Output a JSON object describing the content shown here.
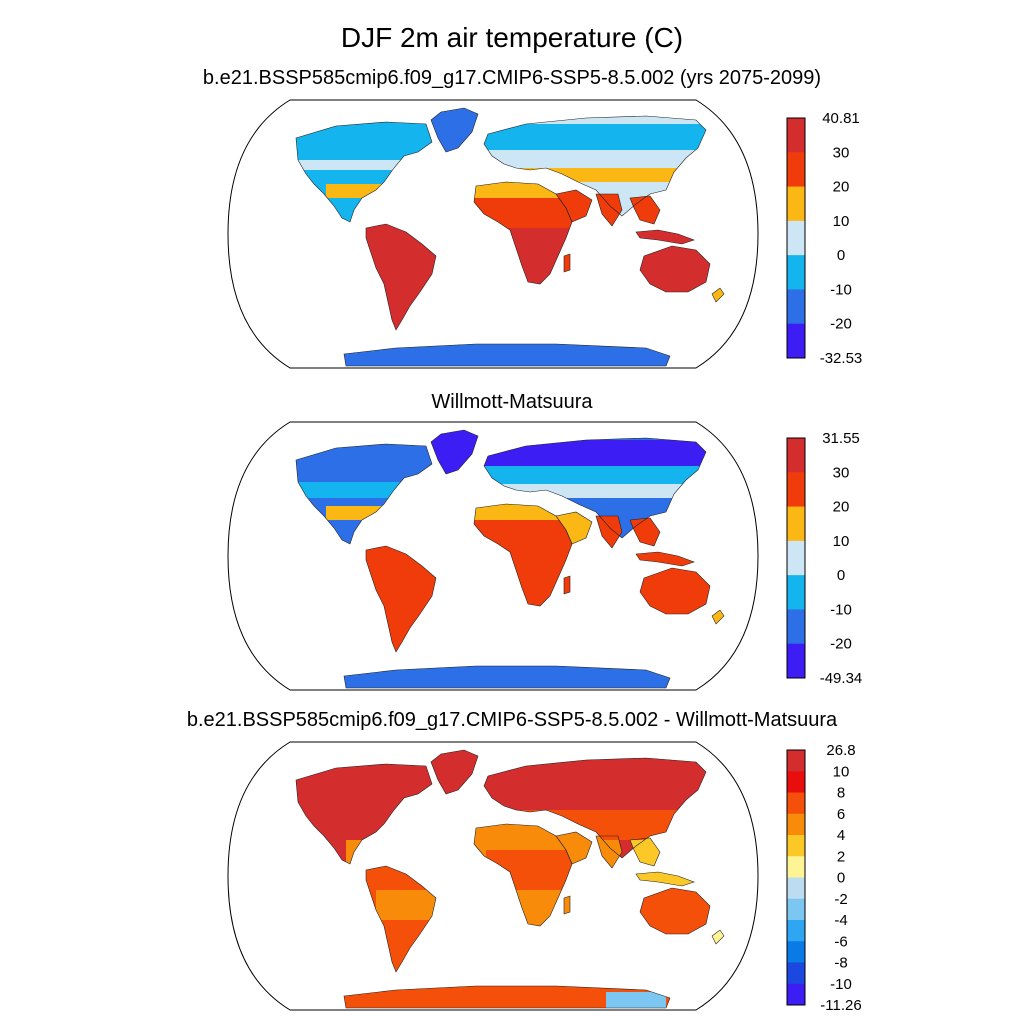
{
  "title": "DJF 2m air temperature (C)",
  "panels": [
    {
      "title": "b.e21.BSSP585cmip6.f09_g17.CMIP6-SSP5-8.5.002 (yrs 2075-2099)",
      "colorbar": {
        "labels": [
          "40.81",
          "30",
          "20",
          "10",
          "0",
          "-10",
          "-20",
          "-32.53"
        ],
        "colors": [
          "#d42d2d",
          "#f03c0a",
          "#fbb814",
          "#cce6f6",
          "#14b4ef",
          "#2c6fe6",
          "#3c1ef5"
        ]
      }
    },
    {
      "title": "Willmott-Matsuura",
      "colorbar": {
        "labels": [
          "31.55",
          "30",
          "20",
          "10",
          "0",
          "-10",
          "-20",
          "-49.34"
        ],
        "colors": [
          "#d42d2d",
          "#f03c0a",
          "#fbb814",
          "#cce6f6",
          "#14b4ef",
          "#2c6fe6",
          "#3c1ef5"
        ]
      }
    },
    {
      "title": "b.e21.BSSP585cmip6.f09_g17.CMIP6-SSP5-8.5.002 - Willmott-Matsuura",
      "colorbar": {
        "labels": [
          "26.8",
          "10",
          "8",
          "6",
          "4",
          "2",
          "0",
          "-2",
          "-4",
          "-6",
          "-8",
          "-10",
          "-11.26"
        ],
        "colors": [
          "#d42d2d",
          "#e80e0e",
          "#f4500a",
          "#f88c0a",
          "#fbc828",
          "#fef496",
          "#bcdcf0",
          "#7cc6f2",
          "#2ea6f1",
          "#0a7ae6",
          "#1c48e0",
          "#3c1ef5"
        ]
      }
    }
  ],
  "chart_data": {
    "type": "heatmap",
    "projection": "Robinson",
    "variable": "DJF 2m air temperature",
    "units": "C",
    "panels": [
      {
        "name": "b.e21.BSSP585cmip6.f09_g17.CMIP6-SSP5-8.5.002 (yrs 2075-2099)",
        "range": [
          -32.53,
          40.81
        ],
        "levels": [
          -20,
          -10,
          0,
          10,
          20,
          30
        ]
      },
      {
        "name": "Willmott-Matsuura",
        "range": [
          -49.34,
          31.55
        ],
        "levels": [
          -20,
          -10,
          0,
          10,
          20,
          30
        ]
      },
      {
        "name": "b.e21.BSSP585cmip6.f09_g17.CMIP6-SSP5-8.5.002 - Willmott-Matsuura",
        "range": [
          -11.26,
          26.8
        ],
        "levels": [
          -10,
          -8,
          -6,
          -4,
          -2,
          0,
          2,
          4,
          6,
          8,
          10
        ]
      }
    ]
  }
}
